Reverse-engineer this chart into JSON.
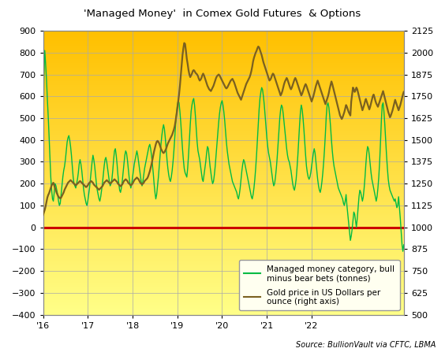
{
  "title": "'Managed Money'  in Comex Gold Futures  & Options",
  "source": "Source: BullionVault via CFTC, LBMA",
  "ylim_left": [
    -400,
    900
  ],
  "ylim_right": [
    500,
    2125
  ],
  "yticks_left": [
    -400,
    -300,
    -200,
    -100,
    0,
    100,
    200,
    300,
    400,
    500,
    600,
    700,
    800,
    900
  ],
  "yticks_right": [
    500,
    625,
    750,
    875,
    1000,
    1125,
    1250,
    1375,
    1500,
    1625,
    1750,
    1875,
    2000,
    2125
  ],
  "xtick_labels": [
    "'16",
    "'17",
    "'18",
    "'19",
    "'20",
    "'21",
    "'22"
  ],
  "bg_color_top": "#FFC000",
  "bg_color_bottom": "#FFFF88",
  "line_net_color": "#00BB44",
  "line_gold_color": "#7A6020",
  "zero_line_color": "#CC0000",
  "grid_color": "#AAAAAA",
  "legend_entries": [
    "Managed money category, bull\nminus bear bets (tonnes)",
    "Gold price in US Dollars per\nounce (right axis)"
  ],
  "net_positions": [
    270,
    680,
    810,
    750,
    680,
    590,
    510,
    420,
    320,
    230,
    170,
    130,
    120,
    160,
    200,
    190,
    170,
    150,
    120,
    100,
    110,
    150,
    190,
    230,
    260,
    280,
    310,
    350,
    390,
    410,
    420,
    400,
    370,
    330,
    280,
    230,
    200,
    190,
    180,
    200,
    220,
    250,
    290,
    310,
    290,
    260,
    220,
    180,
    150,
    130,
    110,
    100,
    120,
    150,
    180,
    220,
    260,
    300,
    330,
    310,
    280,
    240,
    200,
    170,
    150,
    130,
    120,
    140,
    170,
    200,
    240,
    280,
    310,
    320,
    300,
    270,
    240,
    210,
    190,
    200,
    220,
    260,
    310,
    350,
    360,
    330,
    290,
    240,
    200,
    170,
    160,
    180,
    210,
    250,
    290,
    330,
    350,
    340,
    310,
    270,
    230,
    200,
    180,
    200,
    230,
    260,
    290,
    310,
    330,
    350,
    330,
    300,
    270,
    240,
    210,
    190,
    210,
    240,
    270,
    290,
    310,
    330,
    350,
    370,
    380,
    360,
    330,
    290,
    250,
    200,
    160,
    130,
    150,
    190,
    230,
    280,
    330,
    380,
    420,
    450,
    470,
    450,
    410,
    360,
    310,
    270,
    240,
    220,
    210,
    230,
    260,
    300,
    350,
    410,
    470,
    520,
    560,
    580,
    570,
    530,
    480,
    420,
    360,
    310,
    270,
    250,
    240,
    230,
    270,
    330,
    400,
    470,
    530,
    560,
    580,
    590,
    560,
    510,
    450,
    390,
    350,
    330,
    310,
    280,
    250,
    220,
    210,
    240,
    270,
    300,
    340,
    370,
    360,
    320,
    280,
    250,
    220,
    200,
    210,
    240,
    280,
    330,
    380,
    430,
    480,
    520,
    550,
    570,
    580,
    560,
    530,
    490,
    440,
    390,
    350,
    320,
    290,
    270,
    250,
    230,
    210,
    200,
    190,
    180,
    170,
    160,
    140,
    130,
    150,
    180,
    220,
    260,
    290,
    310,
    300,
    280,
    260,
    240,
    220,
    200,
    180,
    160,
    140,
    130,
    150,
    180,
    220,
    270,
    330,
    400,
    470,
    540,
    590,
    620,
    640,
    630,
    600,
    560,
    510,
    460,
    410,
    370,
    340,
    320,
    300,
    270,
    240,
    210,
    190,
    200,
    230,
    270,
    320,
    380,
    440,
    500,
    540,
    560,
    550,
    520,
    480,
    440,
    400,
    360,
    330,
    310,
    300,
    280,
    260,
    230,
    200,
    180,
    170,
    190,
    220,
    270,
    330,
    400,
    470,
    530,
    560,
    540,
    500,
    450,
    390,
    330,
    280,
    250,
    230,
    220,
    230,
    250,
    280,
    310,
    340,
    360,
    340,
    300,
    260,
    220,
    190,
    170,
    160,
    180,
    210,
    250,
    300,
    360,
    430,
    510,
    560,
    570,
    550,
    510,
    460,
    400,
    350,
    310,
    280,
    260,
    240,
    220,
    200,
    180,
    170,
    160,
    150,
    140,
    130,
    110,
    100,
    120,
    150,
    100,
    60,
    20,
    -20,
    -60,
    -40,
    -10,
    30,
    70,
    60,
    30,
    0,
    40,
    90,
    140,
    170,
    160,
    140,
    120,
    140,
    180,
    230,
    290,
    340,
    370,
    360,
    330,
    290,
    250,
    220,
    200,
    180,
    160,
    140,
    120,
    140,
    180,
    230,
    300,
    390,
    490,
    560,
    570,
    530,
    470,
    400,
    330,
    270,
    220,
    190,
    170,
    160,
    150,
    140,
    130,
    120,
    130,
    110,
    90,
    100,
    140,
    90,
    40,
    -20,
    -80,
    -110,
    -80
  ],
  "gold_prices": [
    1070,
    1085,
    1100,
    1120,
    1145,
    1170,
    1185,
    1195,
    1210,
    1225,
    1240,
    1250,
    1255,
    1240,
    1225,
    1210,
    1195,
    1185,
    1175,
    1170,
    1165,
    1170,
    1180,
    1190,
    1200,
    1215,
    1225,
    1235,
    1245,
    1255,
    1260,
    1265,
    1270,
    1265,
    1260,
    1255,
    1250,
    1245,
    1240,
    1245,
    1250,
    1255,
    1260,
    1265,
    1260,
    1255,
    1250,
    1245,
    1240,
    1235,
    1230,
    1235,
    1240,
    1250,
    1255,
    1260,
    1265,
    1260,
    1255,
    1245,
    1240,
    1235,
    1230,
    1225,
    1220,
    1215,
    1220,
    1225,
    1230,
    1235,
    1245,
    1255,
    1260,
    1265,
    1270,
    1265,
    1260,
    1255,
    1250,
    1255,
    1260,
    1265,
    1270,
    1275,
    1270,
    1265,
    1260,
    1250,
    1245,
    1240,
    1235,
    1240,
    1245,
    1255,
    1265,
    1270,
    1275,
    1270,
    1265,
    1255,
    1250,
    1245,
    1240,
    1245,
    1250,
    1260,
    1270,
    1275,
    1280,
    1285,
    1280,
    1275,
    1265,
    1255,
    1250,
    1245,
    1250,
    1255,
    1265,
    1270,
    1275,
    1280,
    1290,
    1305,
    1320,
    1340,
    1360,
    1385,
    1410,
    1435,
    1455,
    1475,
    1490,
    1495,
    1490,
    1480,
    1465,
    1450,
    1440,
    1430,
    1425,
    1430,
    1440,
    1450,
    1465,
    1480,
    1490,
    1500,
    1510,
    1520,
    1530,
    1545,
    1560,
    1580,
    1610,
    1645,
    1680,
    1720,
    1760,
    1810,
    1870,
    1930,
    1985,
    2025,
    2055,
    2050,
    2010,
    1965,
    1935,
    1900,
    1875,
    1860,
    1870,
    1880,
    1895,
    1900,
    1895,
    1885,
    1880,
    1875,
    1865,
    1850,
    1840,
    1845,
    1855,
    1870,
    1880,
    1870,
    1855,
    1840,
    1825,
    1810,
    1800,
    1790,
    1785,
    1780,
    1790,
    1800,
    1810,
    1825,
    1840,
    1855,
    1865,
    1870,
    1875,
    1870,
    1860,
    1850,
    1840,
    1830,
    1820,
    1810,
    1800,
    1795,
    1800,
    1810,
    1820,
    1830,
    1840,
    1845,
    1850,
    1840,
    1830,
    1815,
    1800,
    1785,
    1770,
    1760,
    1750,
    1740,
    1730,
    1745,
    1760,
    1775,
    1790,
    1805,
    1820,
    1830,
    1840,
    1850,
    1860,
    1875,
    1895,
    1920,
    1950,
    1970,
    1985,
    2000,
    2010,
    2025,
    2035,
    2030,
    2015,
    2000,
    1985,
    1965,
    1945,
    1930,
    1915,
    1900,
    1885,
    1870,
    1855,
    1840,
    1845,
    1855,
    1870,
    1880,
    1875,
    1860,
    1845,
    1830,
    1815,
    1800,
    1785,
    1770,
    1755,
    1765,
    1780,
    1800,
    1820,
    1835,
    1845,
    1855,
    1845,
    1830,
    1815,
    1800,
    1790,
    1800,
    1815,
    1830,
    1845,
    1855,
    1845,
    1830,
    1815,
    1800,
    1785,
    1770,
    1755,
    1765,
    1780,
    1795,
    1810,
    1820,
    1810,
    1795,
    1780,
    1765,
    1750,
    1735,
    1720,
    1735,
    1750,
    1770,
    1790,
    1810,
    1825,
    1840,
    1825,
    1810,
    1795,
    1780,
    1765,
    1750,
    1735,
    1720,
    1705,
    1720,
    1735,
    1750,
    1770,
    1795,
    1815,
    1835,
    1820,
    1800,
    1780,
    1760,
    1740,
    1720,
    1700,
    1680,
    1660,
    1640,
    1630,
    1620,
    1630,
    1645,
    1660,
    1680,
    1700,
    1690,
    1675,
    1660,
    1650,
    1640,
    1720,
    1760,
    1800,
    1790,
    1775,
    1785,
    1800,
    1790,
    1770,
    1750,
    1730,
    1710,
    1690,
    1670,
    1685,
    1700,
    1720,
    1735,
    1720,
    1705,
    1690,
    1675,
    1690,
    1710,
    1730,
    1750,
    1760,
    1745,
    1725,
    1710,
    1700,
    1690,
    1705,
    1720,
    1735,
    1750,
    1765,
    1780,
    1760,
    1740,
    1720,
    1700,
    1680,
    1660,
    1645,
    1630,
    1640,
    1655,
    1670,
    1690,
    1710,
    1730,
    1715,
    1700,
    1685,
    1670,
    1685,
    1700,
    1720,
    1740,
    1760,
    1775
  ]
}
